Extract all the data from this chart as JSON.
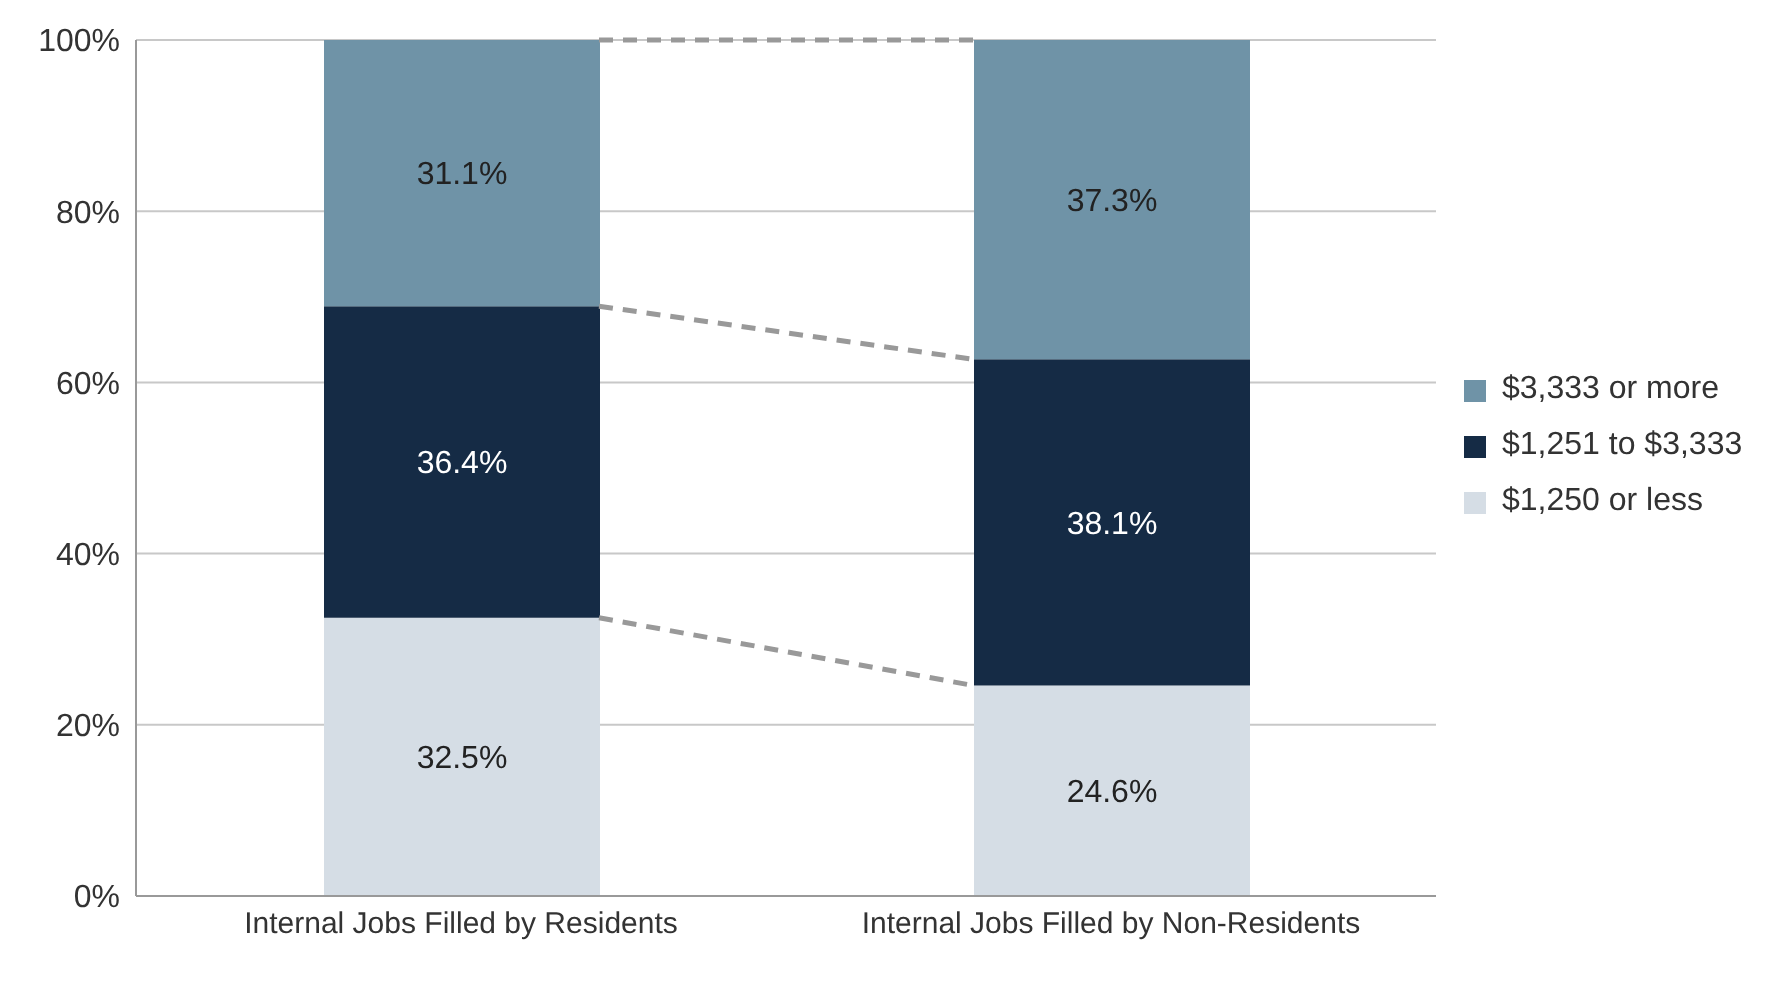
{
  "chart_data": {
    "type": "bar",
    "stacked": true,
    "categories": [
      "Internal Jobs Filled by Residents",
      "Internal Jobs Filled by Non-Residents"
    ],
    "series": [
      {
        "name": "$1,250 or less",
        "color": "#d5dde5",
        "values": [
          32.5,
          24.6
        ],
        "value_labels": [
          "32.5%",
          "24.6%"
        ]
      },
      {
        "name": "$1,251 to $3,333",
        "color": "#152b45",
        "values": [
          36.4,
          38.1
        ],
        "value_labels": [
          "36.4%",
          "38.1%"
        ]
      },
      {
        "name": "$3,333 or more",
        "color": "#6f93a7",
        "values": [
          31.1,
          37.3
        ],
        "value_labels": [
          "31.1%",
          "37.3%"
        ]
      }
    ],
    "ylim": [
      0,
      100
    ],
    "yticks": [
      {
        "value": 0,
        "label": "0%"
      },
      {
        "value": 20,
        "label": "20%"
      },
      {
        "value": 40,
        "label": "40%"
      },
      {
        "value": 60,
        "label": "60%"
      },
      {
        "value": 80,
        "label": "80%"
      },
      {
        "value": 100,
        "label": "100%"
      }
    ],
    "grid": "y",
    "legend": "right"
  }
}
